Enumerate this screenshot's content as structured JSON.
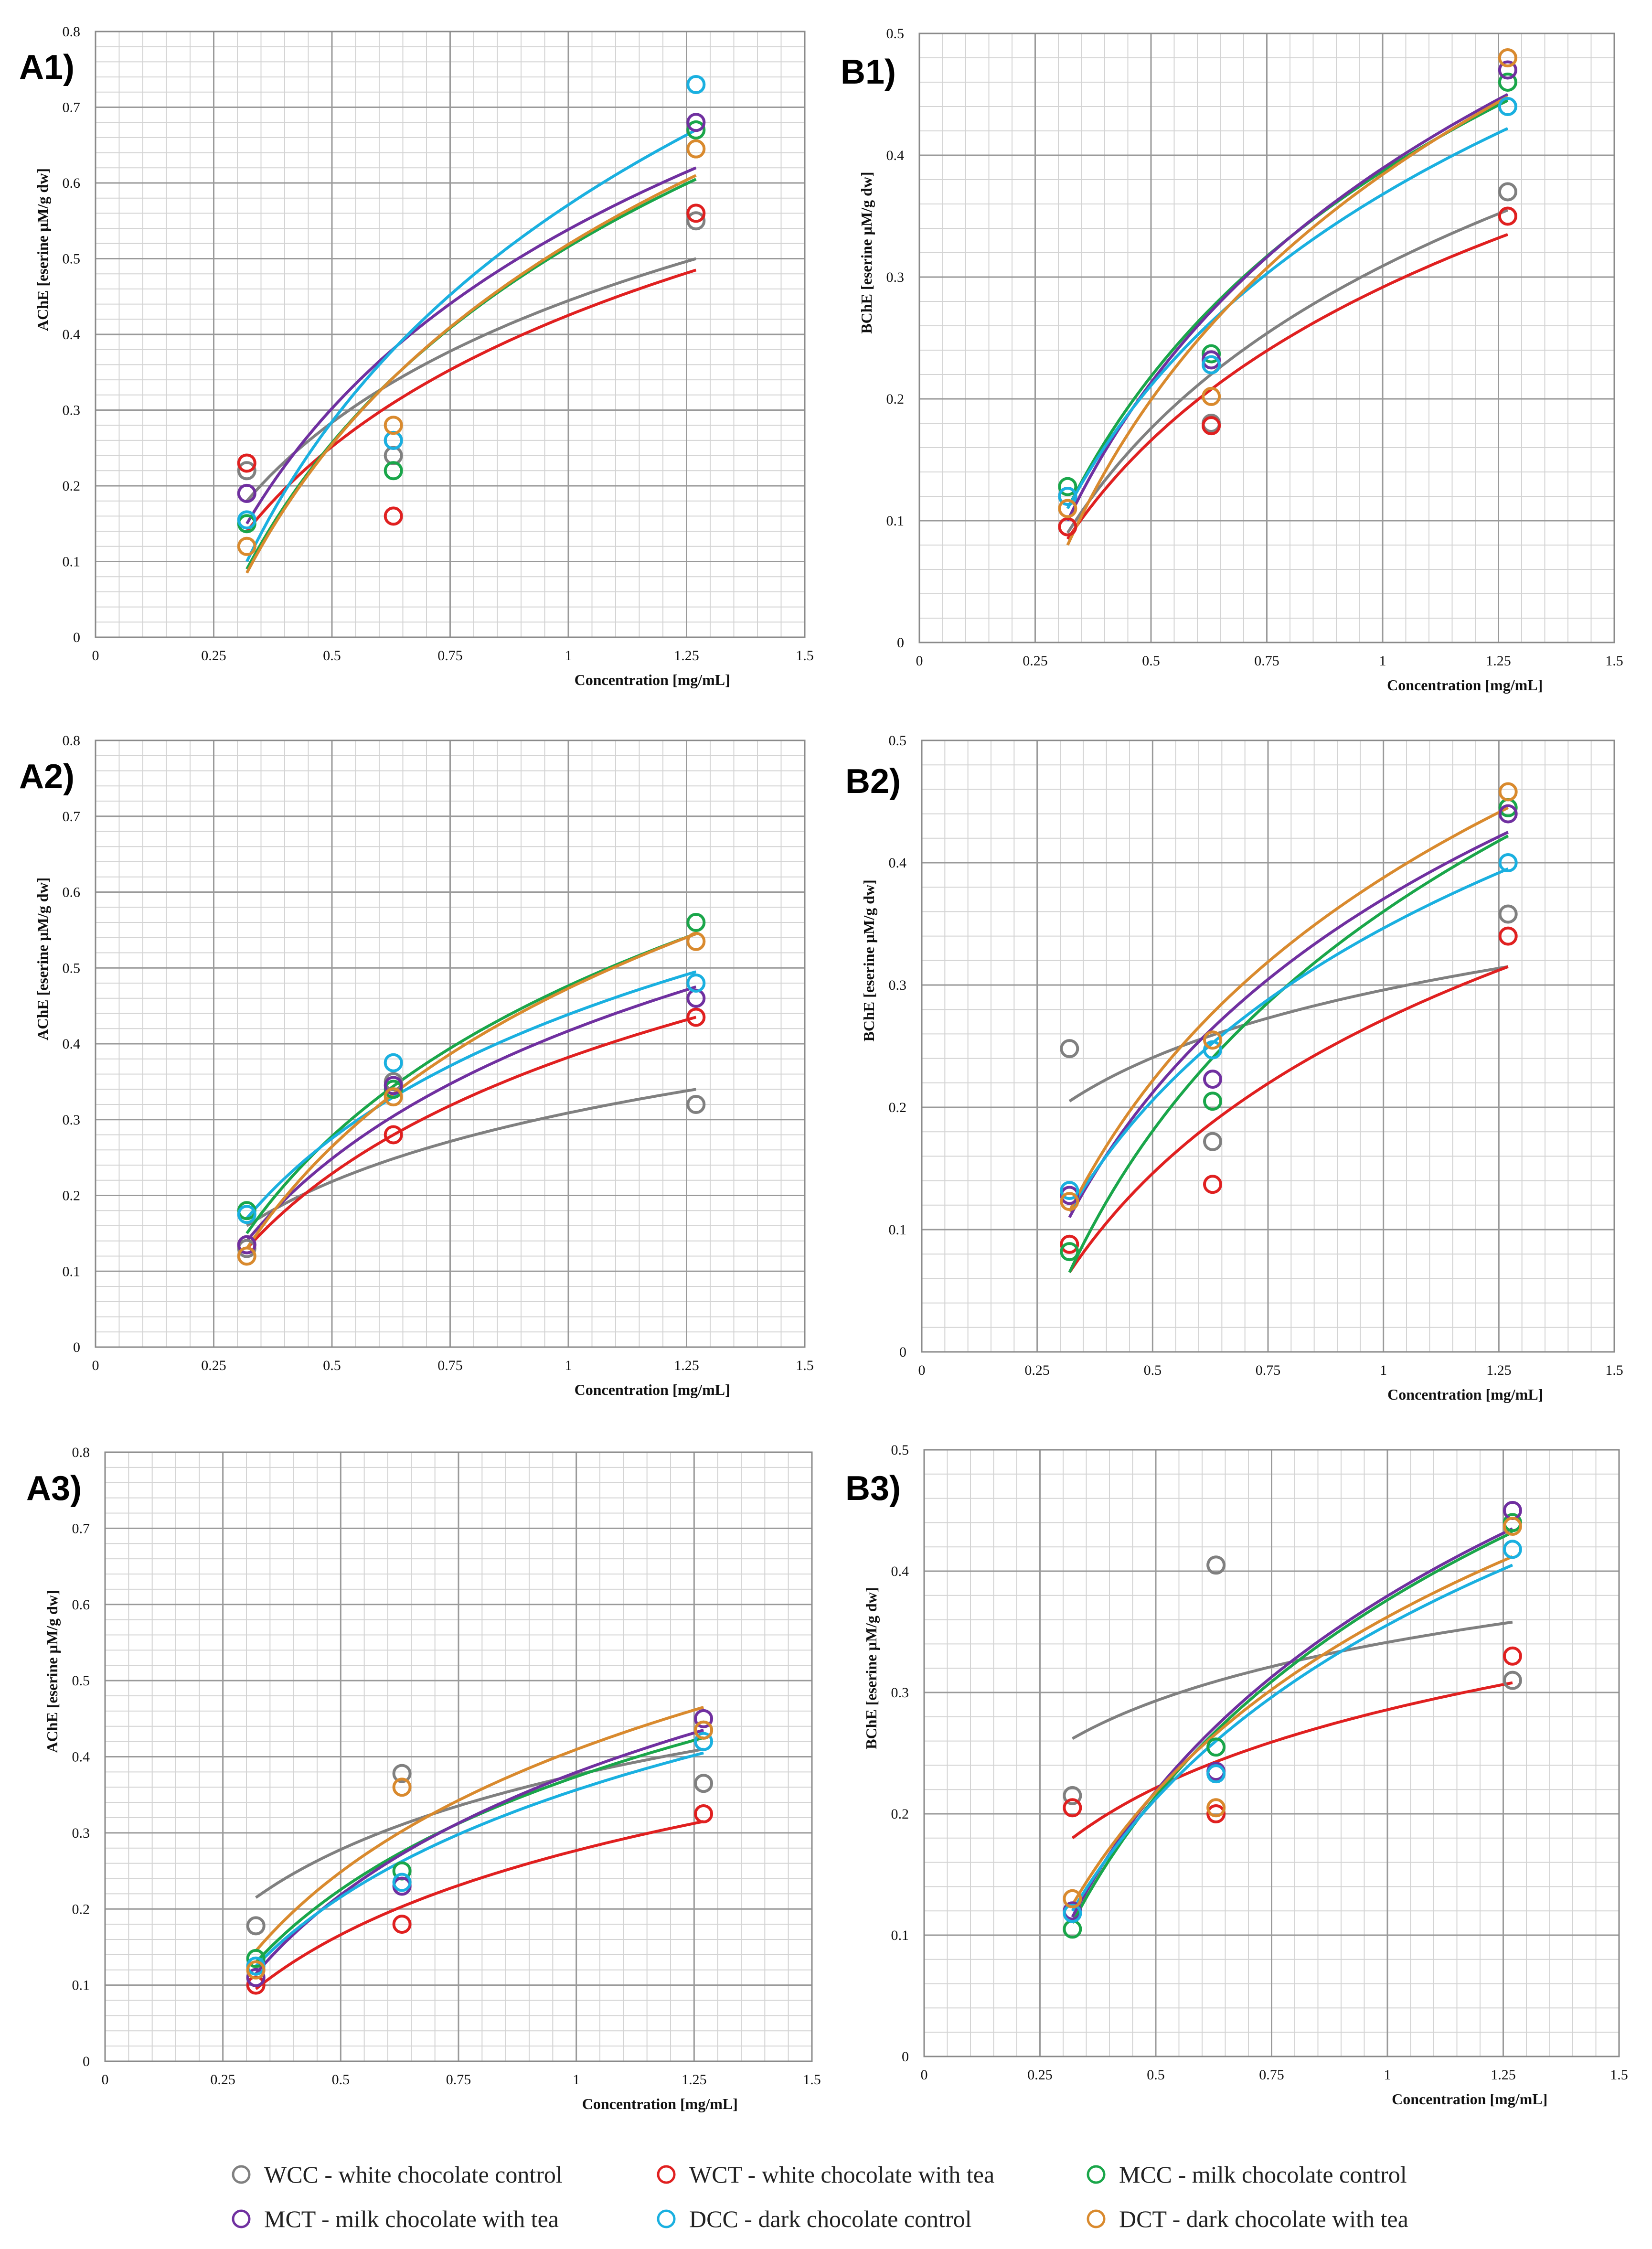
{
  "legend": [
    {
      "code": "WCC",
      "label": "WCC - white chocolate control",
      "color": "#808080"
    },
    {
      "code": "WCT",
      "label": "WCT - white chocolate with tea",
      "color": "#e02020"
    },
    {
      "code": "MCC",
      "label": "MCC - milk chocolate control",
      "color": "#1aa64a"
    },
    {
      "code": "MCT",
      "label": "MCT - milk chocolate with tea",
      "color": "#7030a0"
    },
    {
      "code": "DCC",
      "label": "DCC - dark chocolate control",
      "color": "#1ab0e0"
    },
    {
      "code": "DCT",
      "label": "DCT - dark chocolate with tea",
      "color": "#d98a2e"
    }
  ],
  "chart_data": [
    {
      "panel": "A1)",
      "type": "scatter",
      "xlabel": "Concentration [mg/mL]",
      "ylabel": "AChE [eserine µM/g dw]",
      "xlim": [
        0,
        1.5
      ],
      "ylim": [
        0,
        0.8
      ],
      "xticks": [
        "0",
        "0.25",
        "0.5",
        "0.75",
        "1",
        "1.25",
        "1.5"
      ],
      "yticks": [
        "0",
        "0.1",
        "0.2",
        "0.3",
        "0.4",
        "0.5",
        "0.6",
        "0.7",
        "0.8"
      ],
      "x": [
        0.32,
        0.63,
        1.27
      ],
      "series": [
        {
          "name": "WCC",
          "values": [
            0.22,
            0.24,
            0.55
          ],
          "trend": [
            0.18,
            0.5
          ]
        },
        {
          "name": "WCT",
          "values": [
            0.23,
            0.16,
            0.56
          ],
          "trend": [
            0.14,
            0.485
          ]
        },
        {
          "name": "MCC",
          "values": [
            0.15,
            0.22,
            0.67
          ],
          "trend": [
            0.09,
            0.605
          ]
        },
        {
          "name": "MCT",
          "values": [
            0.19,
            0.26,
            0.68
          ],
          "trend": [
            0.15,
            0.62
          ]
        },
        {
          "name": "DCC",
          "values": [
            0.155,
            0.26,
            0.73
          ],
          "trend": [
            0.1,
            0.67
          ]
        },
        {
          "name": "DCT",
          "values": [
            0.12,
            0.28,
            0.645
          ],
          "trend": [
            0.085,
            0.61
          ]
        }
      ]
    },
    {
      "panel": "B1)",
      "type": "scatter",
      "xlabel": "Concentration [mg/mL]",
      "ylabel": "BChE [eserine µM/g dw]",
      "xlim": [
        0,
        1.5
      ],
      "ylim": [
        0,
        0.5
      ],
      "xticks": [
        "0",
        "0.25",
        "0.5",
        "0.75",
        "1",
        "1.25",
        "1.5"
      ],
      "yticks": [
        "0",
        "0.1",
        "0.2",
        "0.3",
        "0.4",
        "0.5"
      ],
      "x": [
        0.32,
        0.63,
        1.27
      ],
      "series": [
        {
          "name": "WCC",
          "values": [
            0.095,
            0.18,
            0.37
          ],
          "trend": [
            0.09,
            0.355
          ]
        },
        {
          "name": "WCT",
          "values": [
            0.095,
            0.178,
            0.35
          ],
          "trend": [
            0.085,
            0.335
          ]
        },
        {
          "name": "MCC",
          "values": [
            0.128,
            0.237,
            0.46
          ],
          "trend": [
            0.11,
            0.445
          ]
        },
        {
          "name": "MCT",
          "values": [
            0.12,
            0.232,
            0.47
          ],
          "trend": [
            0.1,
            0.45
          ]
        },
        {
          "name": "DCC",
          "values": [
            0.12,
            0.228,
            0.44
          ],
          "trend": [
            0.11,
            0.422
          ]
        },
        {
          "name": "DCT",
          "values": [
            0.11,
            0.202,
            0.48
          ],
          "trend": [
            0.08,
            0.448
          ]
        }
      ]
    },
    {
      "panel": "A2)",
      "type": "scatter",
      "xlabel": "Concentration [mg/mL]",
      "ylabel": "AChE [eserine µM/g dw]",
      "xlim": [
        0,
        1.5
      ],
      "ylim": [
        0,
        0.8
      ],
      "xticks": [
        "0",
        "0.25",
        "0.5",
        "0.75",
        "1",
        "1.25",
        "1.5"
      ],
      "yticks": [
        "0",
        "0.1",
        "0.2",
        "0.3",
        "0.4",
        "0.5",
        "0.6",
        "0.7",
        "0.8"
      ],
      "x": [
        0.32,
        0.63,
        1.27
      ],
      "series": [
        {
          "name": "WCC",
          "values": [
            0.13,
            0.35,
            0.32
          ],
          "trend": [
            0.16,
            0.34
          ]
        },
        {
          "name": "WCT",
          "values": [
            0.135,
            0.28,
            0.435
          ],
          "trend": [
            0.13,
            0.435
          ]
        },
        {
          "name": "MCC",
          "values": [
            0.18,
            0.34,
            0.56
          ],
          "trend": [
            0.15,
            0.545
          ]
        },
        {
          "name": "MCT",
          "values": [
            0.135,
            0.345,
            0.46
          ],
          "trend": [
            0.14,
            0.475
          ]
        },
        {
          "name": "DCC",
          "values": [
            0.175,
            0.375,
            0.48
          ],
          "trend": [
            0.17,
            0.495
          ]
        },
        {
          "name": "DCT",
          "values": [
            0.12,
            0.33,
            0.535
          ],
          "trend": [
            0.13,
            0.545
          ]
        }
      ]
    },
    {
      "panel": "B2)",
      "type": "scatter",
      "xlabel": "Concentration [mg/mL]",
      "ylabel": "BChE [eserine µM/g dw]",
      "xlim": [
        0,
        1.5
      ],
      "ylim": [
        0,
        0.5
      ],
      "xticks": [
        "0",
        "0.25",
        "0.5",
        "0.75",
        "1",
        "1.25",
        "1.5"
      ],
      "yticks": [
        "0",
        "0.1",
        "0.2",
        "0.3",
        "0.4",
        "0.5"
      ],
      "x": [
        0.32,
        0.63,
        1.27
      ],
      "series": [
        {
          "name": "WCC",
          "values": [
            0.248,
            0.172,
            0.358
          ],
          "trend": [
            0.205,
            0.315
          ]
        },
        {
          "name": "WCT",
          "values": [
            0.088,
            0.137,
            0.34
          ],
          "trend": [
            0.065,
            0.315
          ]
        },
        {
          "name": "MCC",
          "values": [
            0.082,
            0.205,
            0.445
          ],
          "trend": [
            0.065,
            0.422
          ]
        },
        {
          "name": "MCT",
          "values": [
            0.128,
            0.223,
            0.44
          ],
          "trend": [
            0.11,
            0.425
          ]
        },
        {
          "name": "DCC",
          "values": [
            0.132,
            0.247,
            0.4
          ],
          "trend": [
            0.115,
            0.395
          ]
        },
        {
          "name": "DCT",
          "values": [
            0.123,
            0.255,
            0.458
          ],
          "trend": [
            0.115,
            0.445
          ]
        }
      ]
    },
    {
      "panel": "A3)",
      "type": "scatter",
      "xlabel": "Concentration [mg/mL]",
      "ylabel": "AChE [eserine µM/g dw]",
      "xlim": [
        0,
        1.5
      ],
      "ylim": [
        0,
        0.8
      ],
      "xticks": [
        "0",
        "0.25",
        "0.5",
        "0.75",
        "1",
        "1.25",
        "1.5"
      ],
      "yticks": [
        "0",
        "0.1",
        "0.2",
        "0.3",
        "0.4",
        "0.5",
        "0.6",
        "0.7",
        "0.8"
      ],
      "x": [
        0.32,
        0.63,
        1.27
      ],
      "series": [
        {
          "name": "WCC",
          "values": [
            0.178,
            0.378,
            0.365
          ],
          "trend": [
            0.215,
            0.41
          ]
        },
        {
          "name": "WCT",
          "values": [
            0.1,
            0.18,
            0.325
          ],
          "trend": [
            0.095,
            0.315
          ]
        },
        {
          "name": "MCC",
          "values": [
            0.135,
            0.25,
            0.435
          ],
          "trend": [
            0.13,
            0.425
          ]
        },
        {
          "name": "MCT",
          "values": [
            0.11,
            0.23,
            0.45
          ],
          "trend": [
            0.115,
            0.435
          ]
        },
        {
          "name": "DCC",
          "values": [
            0.125,
            0.235,
            0.42
          ],
          "trend": [
            0.125,
            0.405
          ]
        },
        {
          "name": "DCT",
          "values": [
            0.12,
            0.36,
            0.435
          ],
          "trend": [
            0.145,
            0.465
          ]
        }
      ]
    },
    {
      "panel": "B3)",
      "type": "scatter",
      "xlabel": "Concentration [mg/mL]",
      "ylabel": "BChE [eserine µM/g dw]",
      "xlim": [
        0,
        1.5
      ],
      "ylim": [
        0,
        0.5
      ],
      "xticks": [
        "0",
        "0.25",
        "0.5",
        "0.75",
        "1",
        "1.25",
        "1.5"
      ],
      "yticks": [
        "0",
        "0.1",
        "0.2",
        "0.3",
        "0.4",
        "0.5"
      ],
      "x": [
        0.32,
        0.63,
        1.27
      ],
      "series": [
        {
          "name": "WCC",
          "values": [
            0.215,
            0.405,
            0.31
          ],
          "trend": [
            0.262,
            0.358
          ]
        },
        {
          "name": "WCT",
          "values": [
            0.205,
            0.2,
            0.33
          ],
          "trend": [
            0.18,
            0.308
          ]
        },
        {
          "name": "MCC",
          "values": [
            0.105,
            0.255,
            0.44
          ],
          "trend": [
            0.11,
            0.432
          ]
        },
        {
          "name": "MCT",
          "values": [
            0.12,
            0.235,
            0.45
          ],
          "trend": [
            0.115,
            0.435
          ]
        },
        {
          "name": "DCC",
          "values": [
            0.118,
            0.233,
            0.418
          ],
          "trend": [
            0.12,
            0.405
          ]
        },
        {
          "name": "DCT",
          "values": [
            0.13,
            0.205,
            0.437
          ],
          "trend": [
            0.125,
            0.412
          ]
        }
      ]
    }
  ]
}
